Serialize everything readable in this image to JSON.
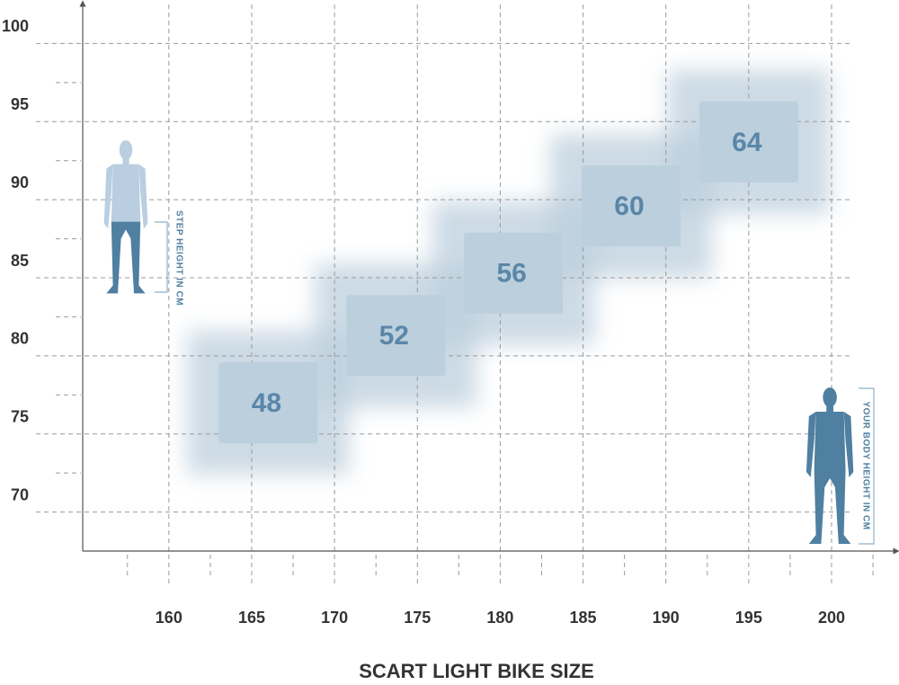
{
  "chart_data": {
    "type": "size-boxes",
    "title": "SCART LIGHT BIKE SIZE",
    "y_label": "STEP HEIGHT IN CM",
    "x_label": "YOUR BODY HEIGHT IN CM",
    "x": [
      166,
      173.7,
      180.8,
      187.9,
      195
    ],
    "y": [
      77,
      81.3,
      85.3,
      89.6,
      93.7
    ],
    "sizes": [
      48,
      52,
      56,
      60,
      64
    ],
    "color": "#bccfdd",
    "xlim": [
      154.8,
      203.8
    ],
    "ylim": [
      67.5,
      102.5
    ],
    "xticks": [
      160,
      165,
      170,
      175,
      180,
      185,
      190,
      195,
      200
    ],
    "yticks": [
      70,
      75,
      80,
      85,
      90,
      95,
      100
    ],
    "xminor_ticks": [
      157.5,
      162.5,
      167.5,
      172.5,
      177.5,
      182.5,
      187.5,
      192.5,
      197.5,
      202.5
    ],
    "yminor_ticks": [
      72.5,
      77.5,
      82.5,
      87.5,
      92.5,
      97.5
    ],
    "grid": true
  }
}
